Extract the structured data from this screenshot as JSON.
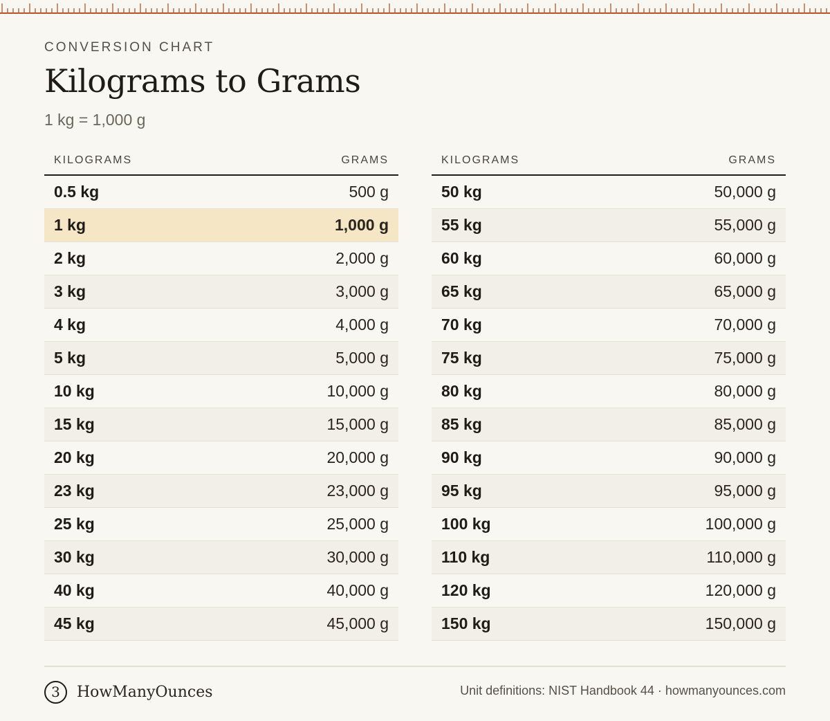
{
  "header": {
    "eyebrow": "CONVERSION CHART",
    "title": "Kilograms to Grams",
    "subtitle": "1 kg = 1,000 g"
  },
  "tables": [
    {
      "col_kg": "KILOGRAMS",
      "col_g": "GRAMS",
      "rows": [
        {
          "kg": "0.5 kg",
          "g": "500 g"
        },
        {
          "kg": "1 kg",
          "g": "1,000 g",
          "highlight": true
        },
        {
          "kg": "2 kg",
          "g": "2,000 g"
        },
        {
          "kg": "3 kg",
          "g": "3,000 g"
        },
        {
          "kg": "4 kg",
          "g": "4,000 g"
        },
        {
          "kg": "5 kg",
          "g": "5,000 g"
        },
        {
          "kg": "10 kg",
          "g": "10,000 g"
        },
        {
          "kg": "15 kg",
          "g": "15,000 g"
        },
        {
          "kg": "20 kg",
          "g": "20,000 g"
        },
        {
          "kg": "23 kg",
          "g": "23,000 g"
        },
        {
          "kg": "25 kg",
          "g": "25,000 g"
        },
        {
          "kg": "30 kg",
          "g": "30,000 g"
        },
        {
          "kg": "40 kg",
          "g": "40,000 g"
        },
        {
          "kg": "45 kg",
          "g": "45,000 g"
        }
      ]
    },
    {
      "col_kg": "KILOGRAMS",
      "col_g": "GRAMS",
      "rows": [
        {
          "kg": "50 kg",
          "g": "50,000 g"
        },
        {
          "kg": "55 kg",
          "g": "55,000 g"
        },
        {
          "kg": "60 kg",
          "g": "60,000 g"
        },
        {
          "kg": "65 kg",
          "g": "65,000 g"
        },
        {
          "kg": "70 kg",
          "g": "70,000 g"
        },
        {
          "kg": "75 kg",
          "g": "75,000 g"
        },
        {
          "kg": "80 kg",
          "g": "80,000 g"
        },
        {
          "kg": "85 kg",
          "g": "85,000 g"
        },
        {
          "kg": "90 kg",
          "g": "90,000 g"
        },
        {
          "kg": "95 kg",
          "g": "95,000 g"
        },
        {
          "kg": "100 kg",
          "g": "100,000 g"
        },
        {
          "kg": "110 kg",
          "g": "110,000 g"
        },
        {
          "kg": "120 kg",
          "g": "120,000 g"
        },
        {
          "kg": "150 kg",
          "g": "150,000 g"
        }
      ]
    }
  ],
  "footer": {
    "logo_glyph": "3",
    "brand": "HowManyOunces",
    "source": "Unit definitions: NIST Handbook 44 · howmanyounces.com"
  },
  "colors": {
    "background": "#f9f7f2",
    "ruler": "#b5562b",
    "highlight_row": "#f5e6c6",
    "alt_row": "#f2efe8"
  }
}
